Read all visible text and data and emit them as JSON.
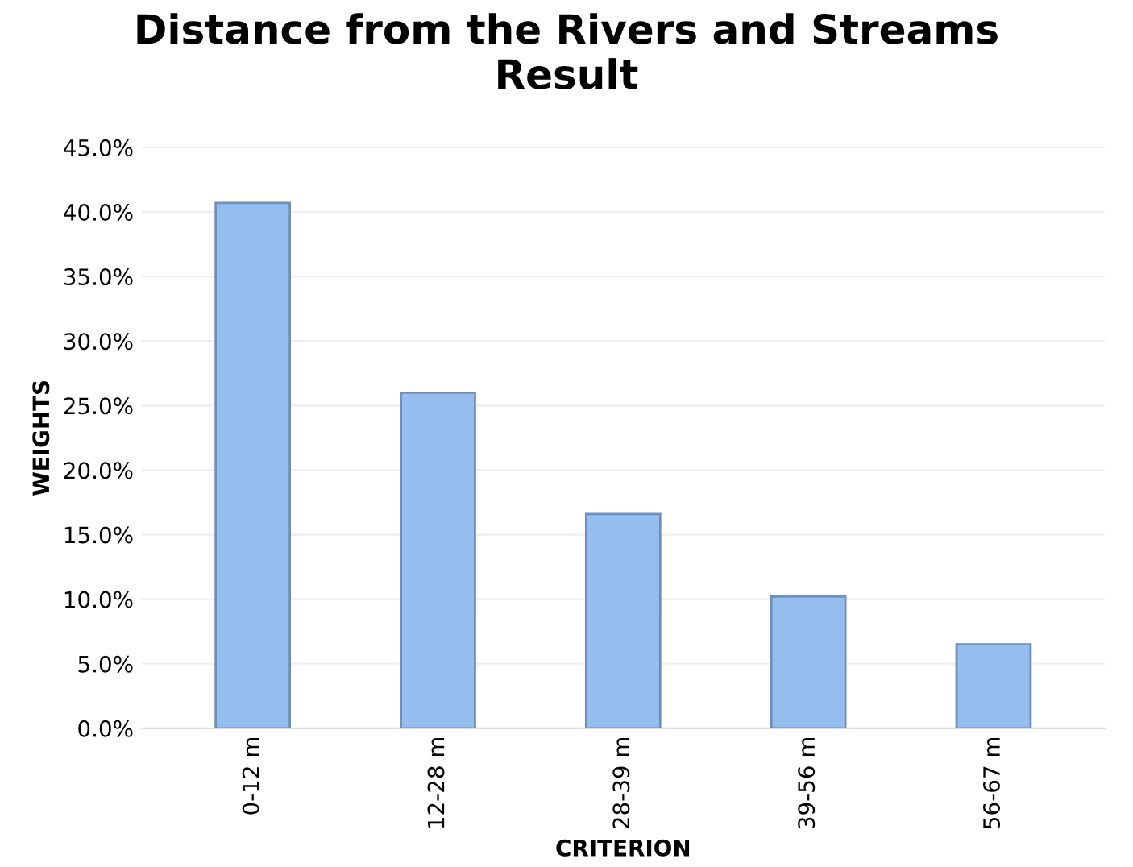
{
  "chart_data": {
    "type": "bar",
    "title": "Distance from the Rivers and Streams\nResult",
    "xlabel": "CRITERION",
    "ylabel": "WEIGHTS",
    "categories": [
      "0-12 m",
      "12-28 m",
      "28-39 m",
      "39-56 m",
      "56-67 m"
    ],
    "values": [
      40.7,
      26.0,
      16.6,
      10.2,
      6.5
    ],
    "color": "#95bdee",
    "ylim": [
      0,
      45
    ],
    "yticks": [
      {
        "value": 0,
        "label": "0.0%"
      },
      {
        "value": 5,
        "label": "5.0%"
      },
      {
        "value": 10,
        "label": "10.0%"
      },
      {
        "value": 15,
        "label": "15.0%"
      },
      {
        "value": 20,
        "label": "20.0%"
      },
      {
        "value": 25,
        "label": "25.0%"
      },
      {
        "value": 30,
        "label": "30.0%"
      },
      {
        "value": 35,
        "label": "35.0%"
      },
      {
        "value": 40,
        "label": "40.0%"
      },
      {
        "value": 45,
        "label": "45.0%"
      }
    ],
    "grid": "y"
  }
}
